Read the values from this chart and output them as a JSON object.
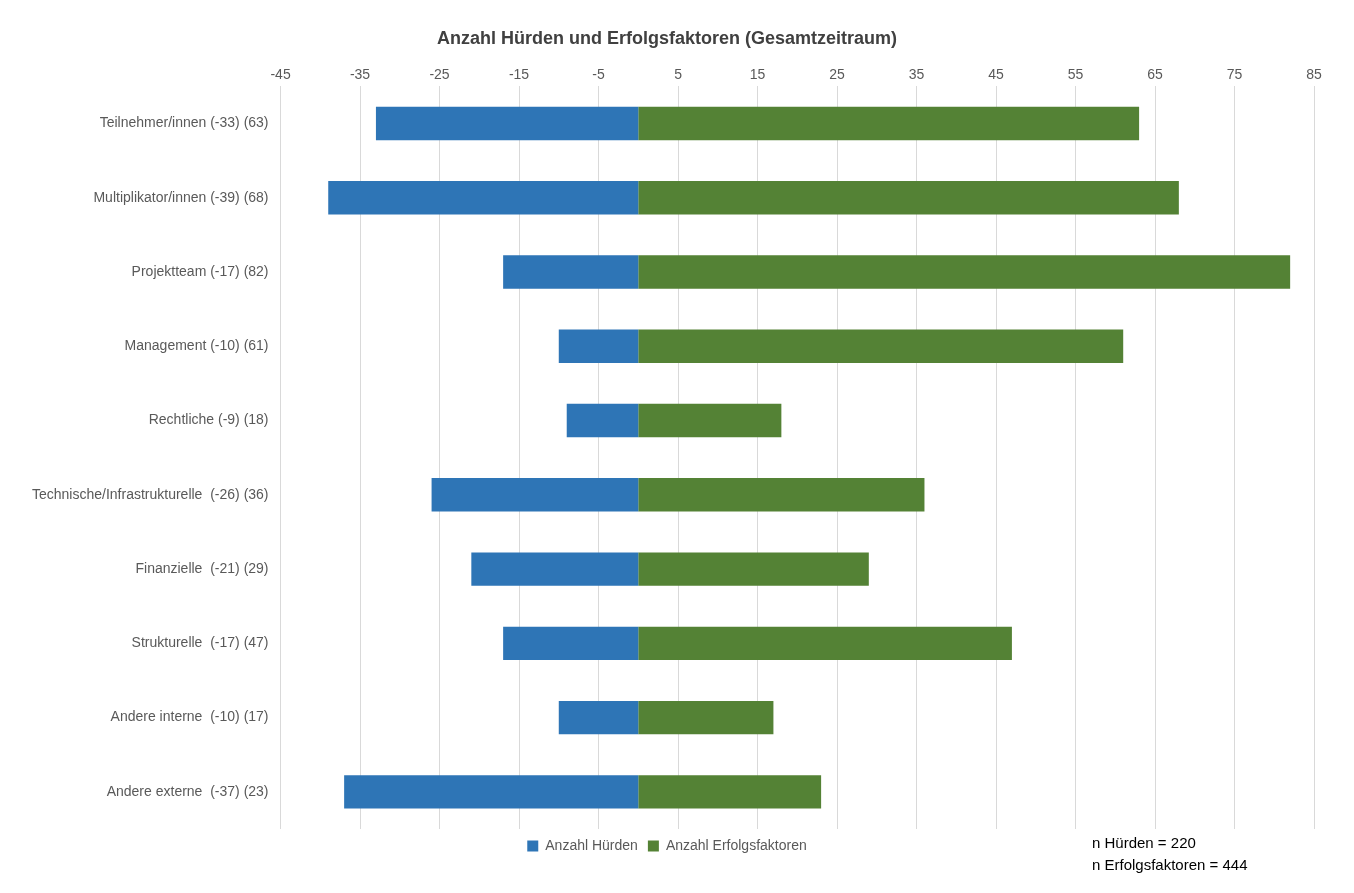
{
  "chart_data": {
    "type": "bar",
    "orientation": "horizontal",
    "stacked": true,
    "title": "Anzahl Hürden und Erfolgsfaktoren (Gesamtzeitraum)",
    "categories": [
      "Teilnehmer/innen (-33) (63)",
      "Multiplikator/innen (-39) (68)",
      "Projektteam (-17) (82)",
      "Management (-10) (61)",
      "Rechtliche (-9) (18)",
      "Technische/Infrastrukturelle  (-26) (36)",
      "Finanzielle  (-21) (29)",
      "Strukturelle  (-17) (47)",
      "Andere interne  (-10) (17)",
      "Andere externe  (-37) (23)"
    ],
    "series": [
      {
        "name": "Anzahl Hürden",
        "color": "#2e75b6",
        "values": [
          -33,
          -39,
          -17,
          -10,
          -9,
          -26,
          -21,
          -17,
          -10,
          -37
        ]
      },
      {
        "name": "Anzahl Erfolgsfaktoren",
        "color": "#548235",
        "values": [
          63,
          68,
          82,
          61,
          18,
          36,
          29,
          47,
          17,
          23
        ]
      }
    ],
    "xlim": [
      -45,
      85
    ],
    "xticks": [
      -45,
      -35,
      -25,
      -15,
      -5,
      5,
      15,
      25,
      35,
      45,
      55,
      65,
      75,
      85
    ],
    "grid": "x",
    "legend": "bottom",
    "annotations": [
      "n Hürden = 220",
      "n Erfolgsfaktoren = 444"
    ]
  }
}
